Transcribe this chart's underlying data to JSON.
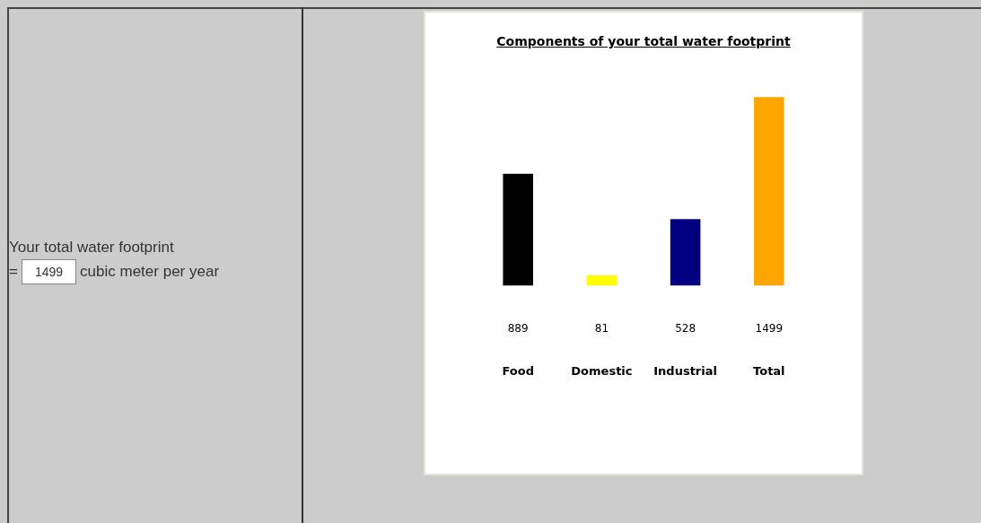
{
  "chart_data": {
    "type": "bar",
    "title": "Components of your total water footprint",
    "categories": [
      "Food",
      "Domestic",
      "Industrial",
      "Total"
    ],
    "values": [
      889,
      81,
      528,
      1499
    ],
    "colors": [
      "#000000",
      "#ffff00",
      "#000080",
      "#ffa500"
    ],
    "data_labels": true,
    "legend": false,
    "grid": false,
    "annotations": [
      "Your total water footprint",
      "=",
      "1499",
      "cubic meter per year"
    ]
  }
}
